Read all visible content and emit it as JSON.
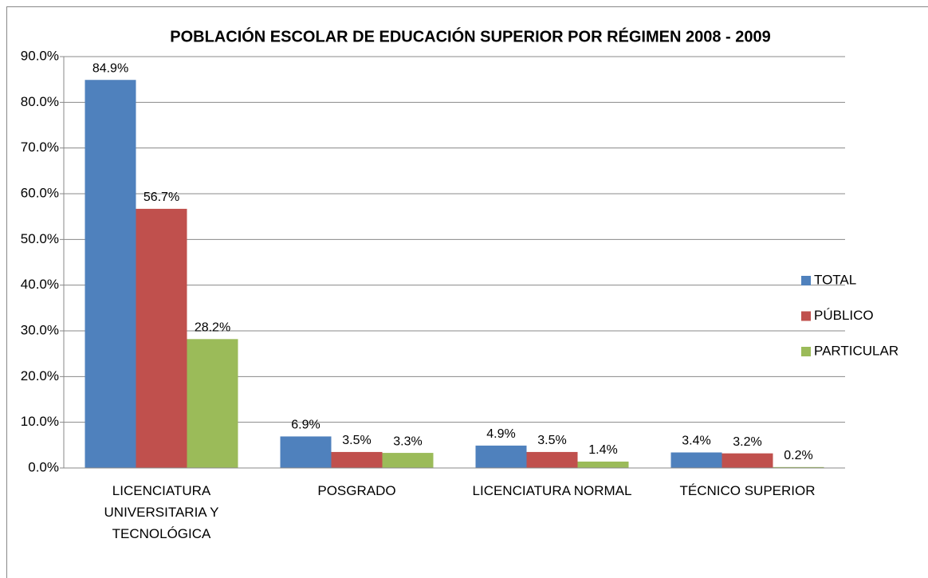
{
  "chart_data": {
    "type": "bar",
    "title": "POBLACIÓN ESCOLAR DE EDUCACIÓN SUPERIOR POR RÉGIMEN 2008 - 2009",
    "categories": [
      "LICENCIATURA UNIVERSITARIA Y TECNOLÓGICA",
      "POSGRADO",
      "LICENCIATURA NORMAL",
      "TÉCNICO SUPERIOR"
    ],
    "series": [
      {
        "name": "TOTAL",
        "color": "#4f81bd",
        "values": [
          84.9,
          6.9,
          4.9,
          3.4
        ],
        "value_labels": [
          "84.9%",
          "6.9%",
          "4.9%",
          "3.4%"
        ]
      },
      {
        "name": "PÚBLICO",
        "color": "#c0504d",
        "values": [
          56.7,
          3.5,
          3.5,
          3.2
        ],
        "value_labels": [
          "56.7%",
          "3.5%",
          "3.5%",
          "3.2%"
        ]
      },
      {
        "name": "PARTICULAR",
        "color": "#9bbb59",
        "values": [
          28.2,
          3.3,
          1.4,
          0.2
        ],
        "value_labels": [
          "28.2%",
          "3.3%",
          "1.4%",
          "0.2%"
        ]
      }
    ],
    "ylim": [
      0,
      90
    ],
    "yticks": [
      {
        "value": 0,
        "label": "0.0%"
      },
      {
        "value": 10,
        "label": "10.0%"
      },
      {
        "value": 20,
        "label": "20.0%"
      },
      {
        "value": 30,
        "label": "30.0%"
      },
      {
        "value": 40,
        "label": "40.0%"
      },
      {
        "value": 50,
        "label": "50.0%"
      },
      {
        "value": 60,
        "label": "60.0%"
      },
      {
        "value": 70,
        "label": "70.0%"
      },
      {
        "value": 80,
        "label": "80.0%"
      },
      {
        "value": 90,
        "label": "90.0%"
      }
    ],
    "grid": true,
    "legend": "right"
  }
}
